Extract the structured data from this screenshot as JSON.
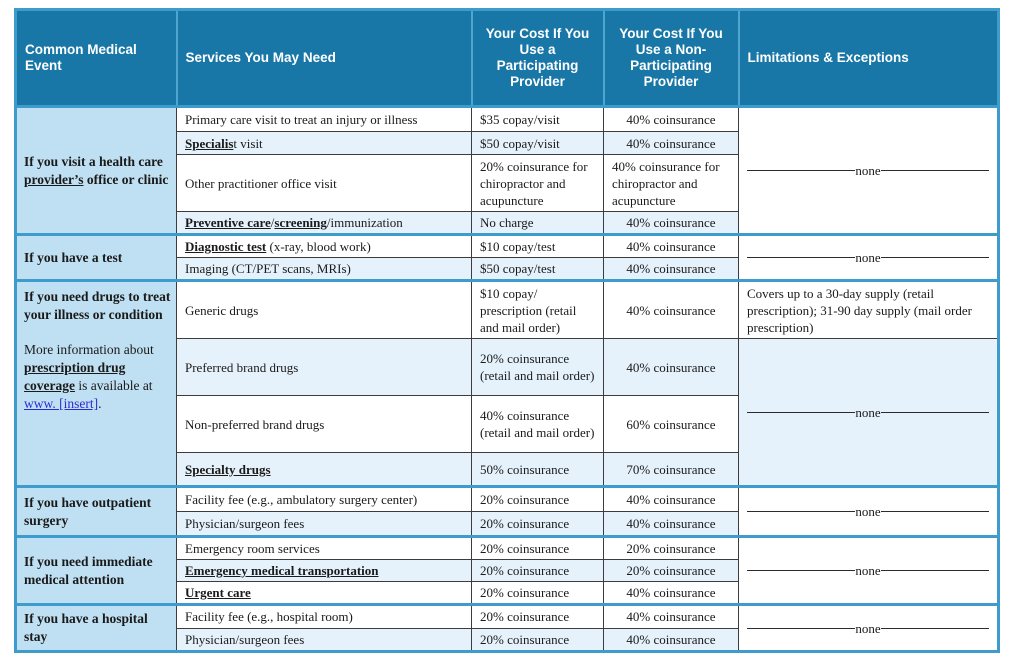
{
  "colors": {
    "header_bg": "#1877A7",
    "section_divider": "#3D9CCB",
    "event_column_bg": "#BFE0F2",
    "alt_row_bg": "#E6F2FB",
    "link_color": "#2b2bd0",
    "cell_border": "#3c3c3c"
  },
  "table": {
    "columns": [
      {
        "label": "Common Medical Event"
      },
      {
        "label": "Services You May Need"
      },
      {
        "label": "Your Cost If You Use a Participating Provider"
      },
      {
        "label": "Your Cost If You Use a Non-Participating Provider"
      },
      {
        "label": "Limitations & Exceptions"
      }
    ],
    "none_label": "none",
    "sections": [
      {
        "event": {
          "paragraphs": [
            {
              "bold": true,
              "segments": [
                {
                  "t": "If you visit a health care "
                },
                {
                  "t": "provider’s",
                  "u": true
                },
                {
                  "t": " office or clinic"
                }
              ]
            }
          ]
        },
        "rows": [
          {
            "service": [
              {
                "t": "Primary care visit to treat an injury or illness"
              }
            ],
            "participating": "$35 copay/visit",
            "nonparticipating": "40% coinsurance"
          },
          {
            "service": [
              {
                "t": "Specialis",
                "b": true,
                "u": true
              },
              {
                "t": "t visit"
              }
            ],
            "participating": "$50 copay/visit",
            "nonparticipating": "40% coinsurance"
          },
          {
            "service": [
              {
                "t": "Other practitioner office visit"
              }
            ],
            "participating": "20% coinsurance for chiropractor and acupuncture",
            "nonparticipating": "40% coinsurance for chiropractor and acupuncture"
          },
          {
            "service": [
              {
                "t": "Preventive care",
                "b": true,
                "u": true
              },
              {
                "t": "/"
              },
              {
                "t": "screening",
                "b": true,
                "u": true
              },
              {
                "t": "/immunization"
              }
            ],
            "participating": "No charge",
            "nonparticipating": "40% coinsurance"
          }
        ],
        "limitations": [
          {
            "rows": 4,
            "kind": "none"
          }
        ]
      },
      {
        "event": {
          "paragraphs": [
            {
              "bold": true,
              "segments": [
                {
                  "t": "If you have a test"
                }
              ]
            }
          ]
        },
        "rows": [
          {
            "service": [
              {
                "t": "Diagnostic test",
                "b": true,
                "u": true
              },
              {
                "t": " (x-ray, blood work)"
              }
            ],
            "participating": "$10 copay/test",
            "nonparticipating": "40% coinsurance"
          },
          {
            "service": [
              {
                "t": "Imaging (CT/PET scans, MRIs)"
              }
            ],
            "participating": "$50 copay/test",
            "nonparticipating": "40% coinsurance"
          }
        ],
        "limitations": [
          {
            "rows": 2,
            "kind": "none"
          }
        ]
      },
      {
        "event": {
          "paragraphs": [
            {
              "bold": true,
              "segments": [
                {
                  "t": "If you need drugs to treat your illness or condition"
                }
              ]
            },
            {
              "bold": false,
              "segments": [
                {
                  "t": "More information about "
                },
                {
                  "t": "prescription drug coverage",
                  "b": true,
                  "u": true
                },
                {
                  "t": " is available at "
                },
                {
                  "t": "www. [insert]",
                  "link": true
                },
                {
                  "t": "."
                }
              ]
            }
          ]
        },
        "rows": [
          {
            "service": [
              {
                "t": "Generic drugs"
              }
            ],
            "participating": "$10 copay/ prescription (retail and mail order)",
            "nonparticipating": "40% coinsurance"
          },
          {
            "service": [
              {
                "t": "Preferred brand drugs"
              }
            ],
            "participating": "20% coinsurance (retail and mail order)",
            "nonparticipating": "40% coinsurance"
          },
          {
            "service": [
              {
                "t": "Non-preferred brand drugs"
              }
            ],
            "participating": "40% coinsurance (retail and mail order)",
            "nonparticipating": "60% coinsurance"
          },
          {
            "service": [
              {
                "t": "Specialty drugs",
                "b": true,
                "u": true
              }
            ],
            "participating": "50% coinsurance",
            "nonparticipating": "70% coinsurance"
          }
        ],
        "limitations": [
          {
            "rows": 1,
            "kind": "text",
            "text": "Covers up to a 30-day supply (retail prescription); 31-90 day supply (mail order prescription)"
          },
          {
            "rows": 3,
            "kind": "none",
            "tint": true
          }
        ]
      },
      {
        "event": {
          "paragraphs": [
            {
              "bold": true,
              "segments": [
                {
                  "t": "If you have outpatient surgery"
                }
              ]
            }
          ]
        },
        "rows": [
          {
            "service": [
              {
                "t": "Facility fee (e.g., ambulatory surgery center)"
              }
            ],
            "participating": "20% coinsurance",
            "nonparticipating": "40% coinsurance"
          },
          {
            "service": [
              {
                "t": "Physician/surgeon fees"
              }
            ],
            "participating": "20% coinsurance",
            "nonparticipating": "40% coinsurance"
          }
        ],
        "limitations": [
          {
            "rows": 2,
            "kind": "none"
          }
        ]
      },
      {
        "event": {
          "paragraphs": [
            {
              "bold": true,
              "segments": [
                {
                  "t": "If you need immediate medical attention"
                }
              ]
            }
          ]
        },
        "rows": [
          {
            "service": [
              {
                "t": "Emergency room services"
              }
            ],
            "participating": "20% coinsurance",
            "nonparticipating": "20% coinsurance"
          },
          {
            "service": [
              {
                "t": "Emergency medical transportation",
                "b": true,
                "u": true
              }
            ],
            "participating": "20% coinsurance",
            "nonparticipating": "20% coinsurance"
          },
          {
            "service": [
              {
                "t": "Urgent care",
                "b": true,
                "u": true
              }
            ],
            "participating": "20% coinsurance",
            "nonparticipating": "40% coinsurance"
          }
        ],
        "limitations": [
          {
            "rows": 3,
            "kind": "none"
          }
        ]
      },
      {
        "event": {
          "paragraphs": [
            {
              "bold": true,
              "segments": [
                {
                  "t": "If you have a hospital stay"
                }
              ]
            }
          ]
        },
        "rows": [
          {
            "service": [
              {
                "t": "Facility fee (e.g., hospital room)"
              }
            ],
            "participating": "20% coinsurance",
            "nonparticipating": "40% coinsurance"
          },
          {
            "service": [
              {
                "t": "Physician/surgeon fees"
              }
            ],
            "participating": "20% coinsurance",
            "nonparticipating": "40% coinsurance"
          }
        ],
        "limitations": [
          {
            "rows": 2,
            "kind": "none"
          }
        ]
      }
    ]
  }
}
